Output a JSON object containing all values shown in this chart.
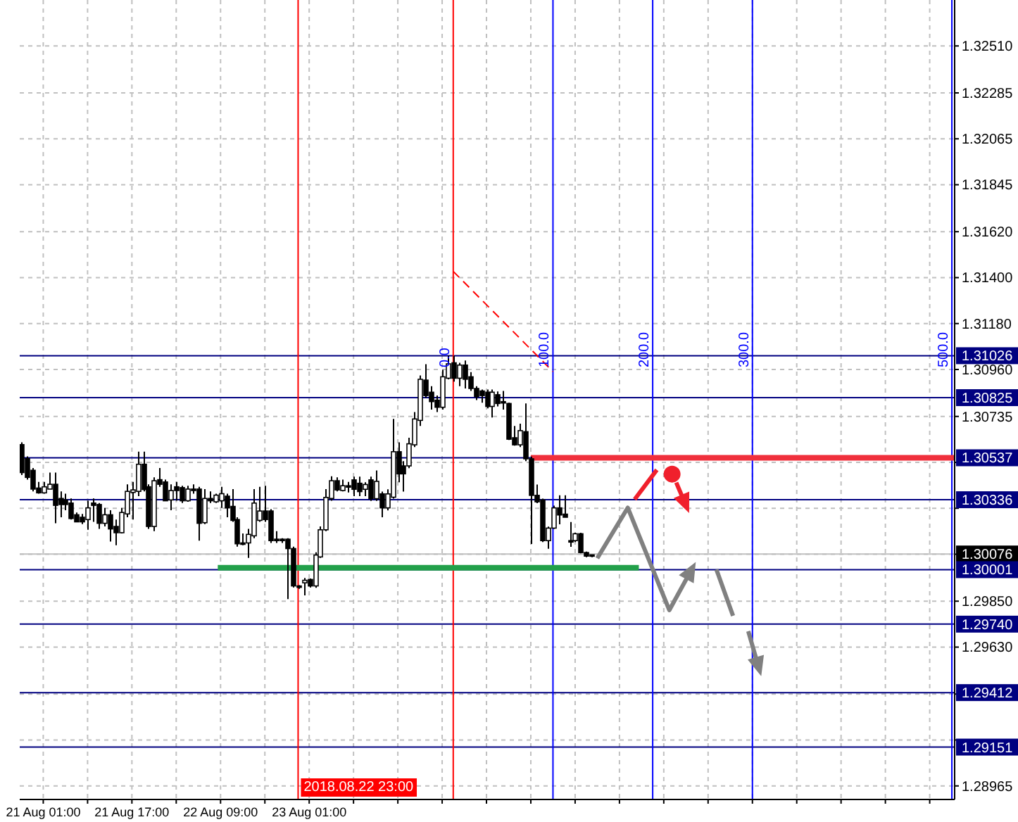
{
  "chart_data": {
    "type": "candlestick",
    "xlim": [
      "2018-08-20T20:45",
      "2018-08-27T21:30"
    ],
    "ylim": [
      1.289,
      1.3273
    ],
    "xticks": [
      {
        "value": "2018-08-21T01:00",
        "label": "21 Aug 01:00"
      },
      {
        "value": "2018-08-21T09:00",
        "label": null
      },
      {
        "value": "2018-08-21T17:00",
        "label": "21 Aug 17:00"
      },
      {
        "value": "2018-08-22T01:00",
        "label": null
      },
      {
        "value": "2018-08-22T09:00",
        "label": "22 Aug 09:00"
      },
      {
        "value": "2018-08-22T17:00",
        "label": null
      },
      {
        "value": "2018-08-23T01:00",
        "label": "23 Aug 01:00"
      },
      {
        "value": "2018-08-23T09:00",
        "label": null
      },
      {
        "value": "2018-08-23T17:00",
        "label": null
      },
      {
        "value": "2018-08-24T01:00",
        "label": null
      },
      {
        "value": "2018-08-24T09:00",
        "label": null
      },
      {
        "value": "2018-08-24T17:00",
        "label": null
      },
      {
        "value": "2018-08-25T01:00",
        "label": null
      },
      {
        "value": "2018-08-25T09:00",
        "label": null
      },
      {
        "value": "2018-08-25T17:00",
        "label": null
      },
      {
        "value": "2018-08-26T01:00",
        "label": null
      },
      {
        "value": "2018-08-26T09:00",
        "label": null
      },
      {
        "value": "2018-08-26T17:00",
        "label": null
      },
      {
        "value": "2018-08-27T01:00",
        "label": null
      },
      {
        "value": "2018-08-27T09:00",
        "label": null
      },
      {
        "value": "2018-08-27T17:00",
        "label": null
      }
    ],
    "yticks": [
      {
        "value": 1.3251,
        "label": "1.32510"
      },
      {
        "value": 1.32285,
        "label": "1.32285"
      },
      {
        "value": 1.32065,
        "label": "1.32065"
      },
      {
        "value": 1.31845,
        "label": "1.31845"
      },
      {
        "value": 1.3162,
        "label": "1.31620"
      },
      {
        "value": 1.314,
        "label": "1.31400"
      },
      {
        "value": 1.3118,
        "label": "1.31180"
      },
      {
        "value": 1.3096,
        "label": "1.30960"
      },
      {
        "value": 1.30735,
        "label": "1.30735"
      },
      {
        "value": 1.30515,
        "label": null
      },
      {
        "value": 1.30295,
        "label": null
      },
      {
        "value": 1.30075,
        "label": null
      },
      {
        "value": 1.2985,
        "label": "1.29850"
      },
      {
        "value": 1.2963,
        "label": "1.29630"
      },
      {
        "value": 1.29405,
        "label": null
      },
      {
        "value": 1.29185,
        "label": null
      },
      {
        "value": 1.28965,
        "label": "1.28965"
      }
    ],
    "grid": true,
    "series": [
      {
        "color": "#000000",
        "x": [
          "2018-08-20T21:00",
          "2018-08-20T22:00",
          "2018-08-20T23:00",
          "2018-08-21T00:00",
          "2018-08-21T01:00",
          "2018-08-21T02:00",
          "2018-08-21T03:00",
          "2018-08-21T04:00",
          "2018-08-21T05:00",
          "2018-08-21T06:00",
          "2018-08-21T07:00",
          "2018-08-21T08:00",
          "2018-08-21T09:00",
          "2018-08-21T10:00",
          "2018-08-21T11:00",
          "2018-08-21T12:00",
          "2018-08-21T13:00",
          "2018-08-21T14:00",
          "2018-08-21T15:00",
          "2018-08-21T16:00",
          "2018-08-21T17:00",
          "2018-08-21T18:00",
          "2018-08-21T19:00",
          "2018-08-21T20:00",
          "2018-08-21T21:00",
          "2018-08-21T22:00",
          "2018-08-21T23:00",
          "2018-08-22T00:00",
          "2018-08-22T01:00",
          "2018-08-22T02:00",
          "2018-08-22T03:00",
          "2018-08-22T04:00",
          "2018-08-22T05:00",
          "2018-08-22T06:00",
          "2018-08-22T07:00",
          "2018-08-22T08:00",
          "2018-08-22T09:00",
          "2018-08-22T10:00",
          "2018-08-22T11:00",
          "2018-08-22T12:00",
          "2018-08-22T13:00",
          "2018-08-22T14:00",
          "2018-08-22T15:00",
          "2018-08-22T16:00",
          "2018-08-22T17:00",
          "2018-08-22T18:00",
          "2018-08-22T19:00",
          "2018-08-22T20:00",
          "2018-08-22T21:00",
          "2018-08-22T22:00",
          "2018-08-22T23:00",
          "2018-08-23T00:00",
          "2018-08-23T01:00",
          "2018-08-23T02:00",
          "2018-08-23T03:00",
          "2018-08-23T04:00",
          "2018-08-23T05:00",
          "2018-08-23T06:00",
          "2018-08-23T07:00",
          "2018-08-23T08:00",
          "2018-08-23T09:00",
          "2018-08-23T10:00",
          "2018-08-23T11:00",
          "2018-08-23T12:00",
          "2018-08-23T13:00",
          "2018-08-23T14:00",
          "2018-08-23T15:00",
          "2018-08-23T16:00",
          "2018-08-23T17:00",
          "2018-08-23T18:00",
          "2018-08-23T19:00",
          "2018-08-23T20:00",
          "2018-08-23T21:00",
          "2018-08-23T22:00",
          "2018-08-23T23:00",
          "2018-08-24T00:00",
          "2018-08-24T01:00",
          "2018-08-24T02:00",
          "2018-08-24T03:00",
          "2018-08-24T04:00",
          "2018-08-24T05:00",
          "2018-08-24T06:00",
          "2018-08-24T07:00",
          "2018-08-24T08:00",
          "2018-08-24T09:00",
          "2018-08-24T10:00",
          "2018-08-24T11:00",
          "2018-08-24T12:00",
          "2018-08-24T13:00",
          "2018-08-24T14:00",
          "2018-08-24T15:00",
          "2018-08-24T16:00",
          "2018-08-24T17:00",
          "2018-08-24T18:00",
          "2018-08-24T19:00",
          "2018-08-24T20:00",
          "2018-08-24T21:00",
          "2018-08-24T22:00",
          "2018-08-24T23:00",
          "2018-08-25T00:00",
          "2018-08-25T01:00",
          "2018-08-25T02:00",
          "2018-08-25T03:00",
          "2018-08-25T04:00"
        ],
        "ohlc": [
          [
            1.306,
            1.30611,
            1.30454,
            1.30466
          ],
          [
            1.30533,
            1.30544,
            1.30432,
            1.30443
          ],
          [
            1.30477,
            1.30488,
            1.30376,
            1.30387
          ],
          [
            1.30392,
            1.30421,
            1.30365,
            1.30369
          ],
          [
            1.30369,
            1.30421,
            1.30365,
            1.30398
          ],
          [
            1.30387,
            1.30466,
            1.30387,
            1.3041
          ],
          [
            1.3041,
            1.30466,
            1.30223,
            1.30309
          ],
          [
            1.30342,
            1.30376,
            1.30252,
            1.30313
          ],
          [
            1.30335,
            1.30365,
            1.30286,
            1.30313
          ],
          [
            1.3032,
            1.30342,
            1.30241,
            1.30246
          ],
          [
            1.30264,
            1.30275,
            1.3023,
            1.3023
          ],
          [
            1.30252,
            1.30268,
            1.30219,
            1.3023
          ],
          [
            1.30241,
            1.30331,
            1.30192,
            1.30297
          ],
          [
            1.3032,
            1.30342,
            1.3023,
            1.30309
          ],
          [
            1.30313,
            1.3032,
            1.30196,
            1.30223
          ],
          [
            1.30223,
            1.30297,
            1.30208,
            1.30264
          ],
          [
            1.30264,
            1.30286,
            1.30136,
            1.30196
          ],
          [
            1.30208,
            1.30241,
            1.30118,
            1.30178
          ],
          [
            1.30178,
            1.30297,
            1.30174,
            1.30275
          ],
          [
            1.30268,
            1.3041,
            1.30252,
            1.30376
          ],
          [
            1.30371,
            1.30421,
            1.30241,
            1.30383
          ],
          [
            1.30376,
            1.30566,
            1.30353,
            1.30506
          ],
          [
            1.30506,
            1.30566,
            1.30376,
            1.30385
          ],
          [
            1.30398,
            1.3041,
            1.30196,
            1.30208
          ],
          [
            1.30208,
            1.30443,
            1.30185,
            1.30427
          ],
          [
            1.30432,
            1.30488,
            1.30398,
            1.3041
          ],
          [
            1.30421,
            1.30432,
            1.30331,
            1.30331
          ],
          [
            1.30335,
            1.3041,
            1.30286,
            1.3038
          ],
          [
            1.30398,
            1.30421,
            1.30331,
            1.3038
          ],
          [
            1.30394,
            1.30403,
            1.3032,
            1.30331
          ],
          [
            1.30331,
            1.30403,
            1.30326,
            1.30387
          ],
          [
            1.30387,
            1.3041,
            1.30365,
            1.3038
          ],
          [
            1.30387,
            1.30398,
            1.3014,
            1.30223
          ],
          [
            1.30226,
            1.30387,
            1.30219,
            1.30342
          ],
          [
            1.30342,
            1.30376,
            1.3032,
            1.30331
          ],
          [
            1.30326,
            1.30365,
            1.3032,
            1.30358
          ],
          [
            1.30331,
            1.30398,
            1.30297,
            1.30365
          ],
          [
            1.30353,
            1.30365,
            1.30252,
            1.30297
          ],
          [
            1.30304,
            1.30387,
            1.3023,
            1.30237
          ],
          [
            1.30241,
            1.30252,
            1.30111,
            1.30125
          ],
          [
            1.30129,
            1.30174,
            1.30118,
            1.30125
          ],
          [
            1.30129,
            1.30196,
            1.30057,
            1.3017
          ],
          [
            1.30163,
            1.30387,
            1.30152,
            1.3032
          ],
          [
            1.30237,
            1.30398,
            1.3023,
            1.30282
          ],
          [
            1.30282,
            1.30403,
            1.3023,
            1.30241
          ],
          [
            1.30282,
            1.30291,
            1.30129,
            1.3014
          ],
          [
            1.30147,
            1.30185,
            1.30129,
            1.3014
          ],
          [
            1.30147,
            1.30152,
            1.30129,
            1.3014
          ],
          [
            1.30147,
            1.30152,
            1.2986,
            1.30102
          ],
          [
            1.30102,
            1.30111,
            1.29916,
            1.29923
          ],
          [
            1.29923,
            1.29927,
            1.29909,
            1.29916
          ],
          [
            1.29938,
            1.29961,
            1.29878,
            1.2995
          ],
          [
            1.29954,
            1.29959,
            1.29916,
            1.29923
          ],
          [
            1.29923,
            1.30084,
            1.29914,
            1.30071
          ],
          [
            1.30062,
            1.30208,
            1.30057,
            1.30192
          ],
          [
            1.30192,
            1.30387,
            1.30185,
            1.30347
          ],
          [
            1.30342,
            1.30448,
            1.30331,
            1.30427
          ],
          [
            1.30427,
            1.30443,
            1.30376,
            1.30383
          ],
          [
            1.3038,
            1.30432,
            1.30376,
            1.30403
          ],
          [
            1.30403,
            1.30421,
            1.30371,
            1.30398
          ],
          [
            1.30431,
            1.30447,
            1.30353,
            1.30386
          ],
          [
            1.30415,
            1.30447,
            1.30353,
            1.30375
          ],
          [
            1.30386,
            1.3042,
            1.30353,
            1.30409
          ],
          [
            1.30431,
            1.30447,
            1.3033,
            1.30341
          ],
          [
            1.30341,
            1.30476,
            1.3033,
            1.30424
          ],
          [
            1.30364,
            1.30375,
            1.30252,
            1.30297
          ],
          [
            1.30297,
            1.30386,
            1.30285,
            1.30364
          ],
          [
            1.30348,
            1.30723,
            1.30341,
            1.30566
          ],
          [
            1.30566,
            1.30611,
            1.3042,
            1.3046
          ],
          [
            1.30498,
            1.30521,
            1.30375,
            1.3046
          ],
          [
            1.30498,
            1.30633,
            1.30487,
            1.30604
          ],
          [
            1.30599,
            1.30756,
            1.30588,
            1.30723
          ],
          [
            1.30716,
            1.30931,
            1.30689,
            1.30913
          ],
          [
            1.30909,
            1.30985,
            1.30824,
            1.30835
          ],
          [
            1.30851,
            1.3088,
            1.30768,
            1.30806
          ],
          [
            1.30813,
            1.30835,
            1.30756,
            1.30779
          ],
          [
            1.30779,
            1.30958,
            1.30768,
            1.30925
          ],
          [
            1.30918,
            1.31026,
            1.30913,
            1.30987
          ],
          [
            1.30992,
            1.31026,
            1.30902,
            1.30918
          ],
          [
            1.30918,
            1.30992,
            1.3088,
            1.30981
          ],
          [
            1.30981,
            1.31003,
            1.30869,
            1.30913
          ],
          [
            1.30925,
            1.30947,
            1.30857,
            1.30869
          ],
          [
            1.30869,
            1.3088,
            1.30813,
            1.3083
          ],
          [
            1.30857,
            1.30864,
            1.30801,
            1.30835
          ],
          [
            1.30851,
            1.30864,
            1.30774,
            1.30783
          ],
          [
            1.30783,
            1.30864,
            1.3073,
            1.30851
          ],
          [
            1.30839,
            1.30855,
            1.30783,
            1.30797
          ],
          [
            1.30806,
            1.30857,
            1.30768,
            1.30801
          ],
          [
            1.30797,
            1.30801,
            1.30622,
            1.30626
          ],
          [
            1.30633,
            1.30689,
            1.30595,
            1.30599
          ],
          [
            1.30599,
            1.307,
            1.30588,
            1.30667
          ],
          [
            1.30662,
            1.30797,
            1.30521,
            1.30532
          ],
          [
            1.30532,
            1.30543,
            1.30124,
            1.30357
          ],
          [
            1.30357,
            1.30409,
            1.30319,
            1.30326
          ],
          [
            1.30335,
            1.30341,
            1.30133,
            1.3014
          ],
          [
            1.3014,
            1.30207,
            1.30101,
            1.302
          ],
          [
            1.302,
            1.30308,
            1.30196,
            1.30297
          ],
          [
            1.30297,
            1.30357,
            1.30218,
            1.30263
          ],
          [
            1.30267,
            1.30357,
            1.30252,
            1.30252
          ],
          [
            1.3014,
            1.30229,
            1.3011,
            1.30133
          ],
          [
            1.3014,
            1.30178,
            1.30133,
            1.30173
          ],
          [
            1.30173,
            1.30178,
            1.30079,
            1.30083
          ],
          [
            1.30083,
            1.30088,
            1.30061,
            1.30066
          ],
          [
            1.30072,
            1.30072,
            1.30061,
            1.30066
          ]
        ]
      },
      {
        "type": "line",
        "color": "#ff0000",
        "line_style": "dashed",
        "x": [
          "2018-08-24T03:00",
          "2018-08-24T21:00"
        ],
        "values": [
          1.3143,
          1.3095
        ]
      },
      {
        "type": "line",
        "color": "#f0303c",
        "x": [
          "2018-08-24T17:00",
          "2018-08-27T21:30"
        ],
        "values": [
          1.30537,
          1.30537
        ]
      },
      {
        "type": "line",
        "color": "#22a04a",
        "x": [
          "2018-08-22T08:30",
          "2018-08-25T12:30"
        ],
        "values": [
          1.3001,
          1.3001
        ]
      }
    ],
    "ref_lines": [
      {
        "axis": "y",
        "value": 1.31026,
        "label": "1.31026",
        "color": "#000080"
      },
      {
        "axis": "y",
        "value": 1.30825,
        "label": "1.30825",
        "color": "#000080"
      },
      {
        "axis": "y",
        "value": 1.30537,
        "label": "1.30537",
        "color": "#000080"
      },
      {
        "axis": "y",
        "value": 1.30336,
        "label": "1.30336",
        "color": "#000080"
      },
      {
        "axis": "y",
        "value": 1.30076,
        "label": "1.30076",
        "color": "#c0c0c0"
      },
      {
        "axis": "y",
        "value": 1.30001,
        "label": "1.30001",
        "color": "#000080"
      },
      {
        "axis": "y",
        "value": 1.2974,
        "label": "1.29740",
        "color": "#000080"
      },
      {
        "axis": "y",
        "value": 1.29412,
        "label": "1.29412",
        "color": "#000080"
      },
      {
        "axis": "y",
        "value": 1.29151,
        "label": "1.29151",
        "color": "#000080"
      },
      {
        "axis": "x",
        "value": "2018-08-22T23:00",
        "label": "2018.08.22 23:00",
        "color": "#ff0000"
      },
      {
        "axis": "x",
        "value": "2018-08-24T03:00",
        "color": "#ff0000"
      },
      {
        "axis": "x",
        "value": "2018-08-24T21:00",
        "color": "#0000ff"
      },
      {
        "axis": "x",
        "value": "2018-08-25T15:00",
        "color": "#0000ff"
      },
      {
        "axis": "x",
        "value": "2018-08-26T09:00",
        "color": "#0000ff"
      },
      {
        "axis": "x",
        "value": "2018-08-27T21:00",
        "color": "#0000ff"
      }
    ],
    "annotations": [
      {
        "text": "0.0",
        "x": "2018-08-24T03:00",
        "y": 1.3097
      },
      {
        "text": "100.0",
        "x": "2018-08-24T21:00",
        "y": 1.3097
      },
      {
        "text": "200.0",
        "x": "2018-08-25T15:00",
        "y": 1.3097
      },
      {
        "text": "300.0",
        "x": "2018-08-26T09:00",
        "y": 1.3097
      },
      {
        "text": "500.0",
        "x": "2018-08-27T21:00",
        "y": 1.3097
      }
    ]
  }
}
